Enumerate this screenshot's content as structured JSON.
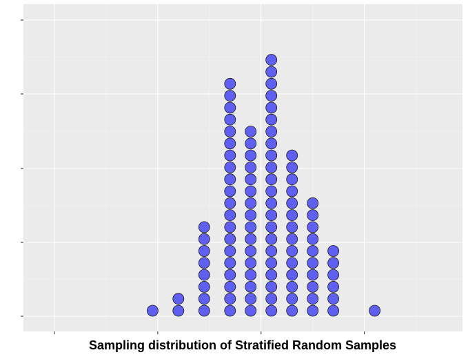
{
  "chart_data": {
    "type": "scatter",
    "subtype": "dotplot",
    "title": "",
    "xlabel": "Sampling distribution of Stratified Random Samples",
    "ylabel": "",
    "grid": true,
    "legend": "none",
    "x_tick_labels": [],
    "y_tick_labels": [],
    "stacks": [
      {
        "x": 2.9,
        "count": 1
      },
      {
        "x": 3.4,
        "count": 2
      },
      {
        "x": 3.9,
        "count": 8
      },
      {
        "x": 4.4,
        "count": 20
      },
      {
        "x": 4.8,
        "count": 16
      },
      {
        "x": 5.2,
        "count": 22
      },
      {
        "x": 5.6,
        "count": 14
      },
      {
        "x": 6.0,
        "count": 10
      },
      {
        "x": 6.4,
        "count": 6
      },
      {
        "x": 7.2,
        "count": 1
      }
    ],
    "colors": {
      "panel": "#ebebeb",
      "grid_major": "#ffffff",
      "grid_minor": "#f5f5f5",
      "dot_fill": "#6060f0",
      "dot_stroke": "#1a1a1a",
      "tick": "#333333"
    }
  }
}
